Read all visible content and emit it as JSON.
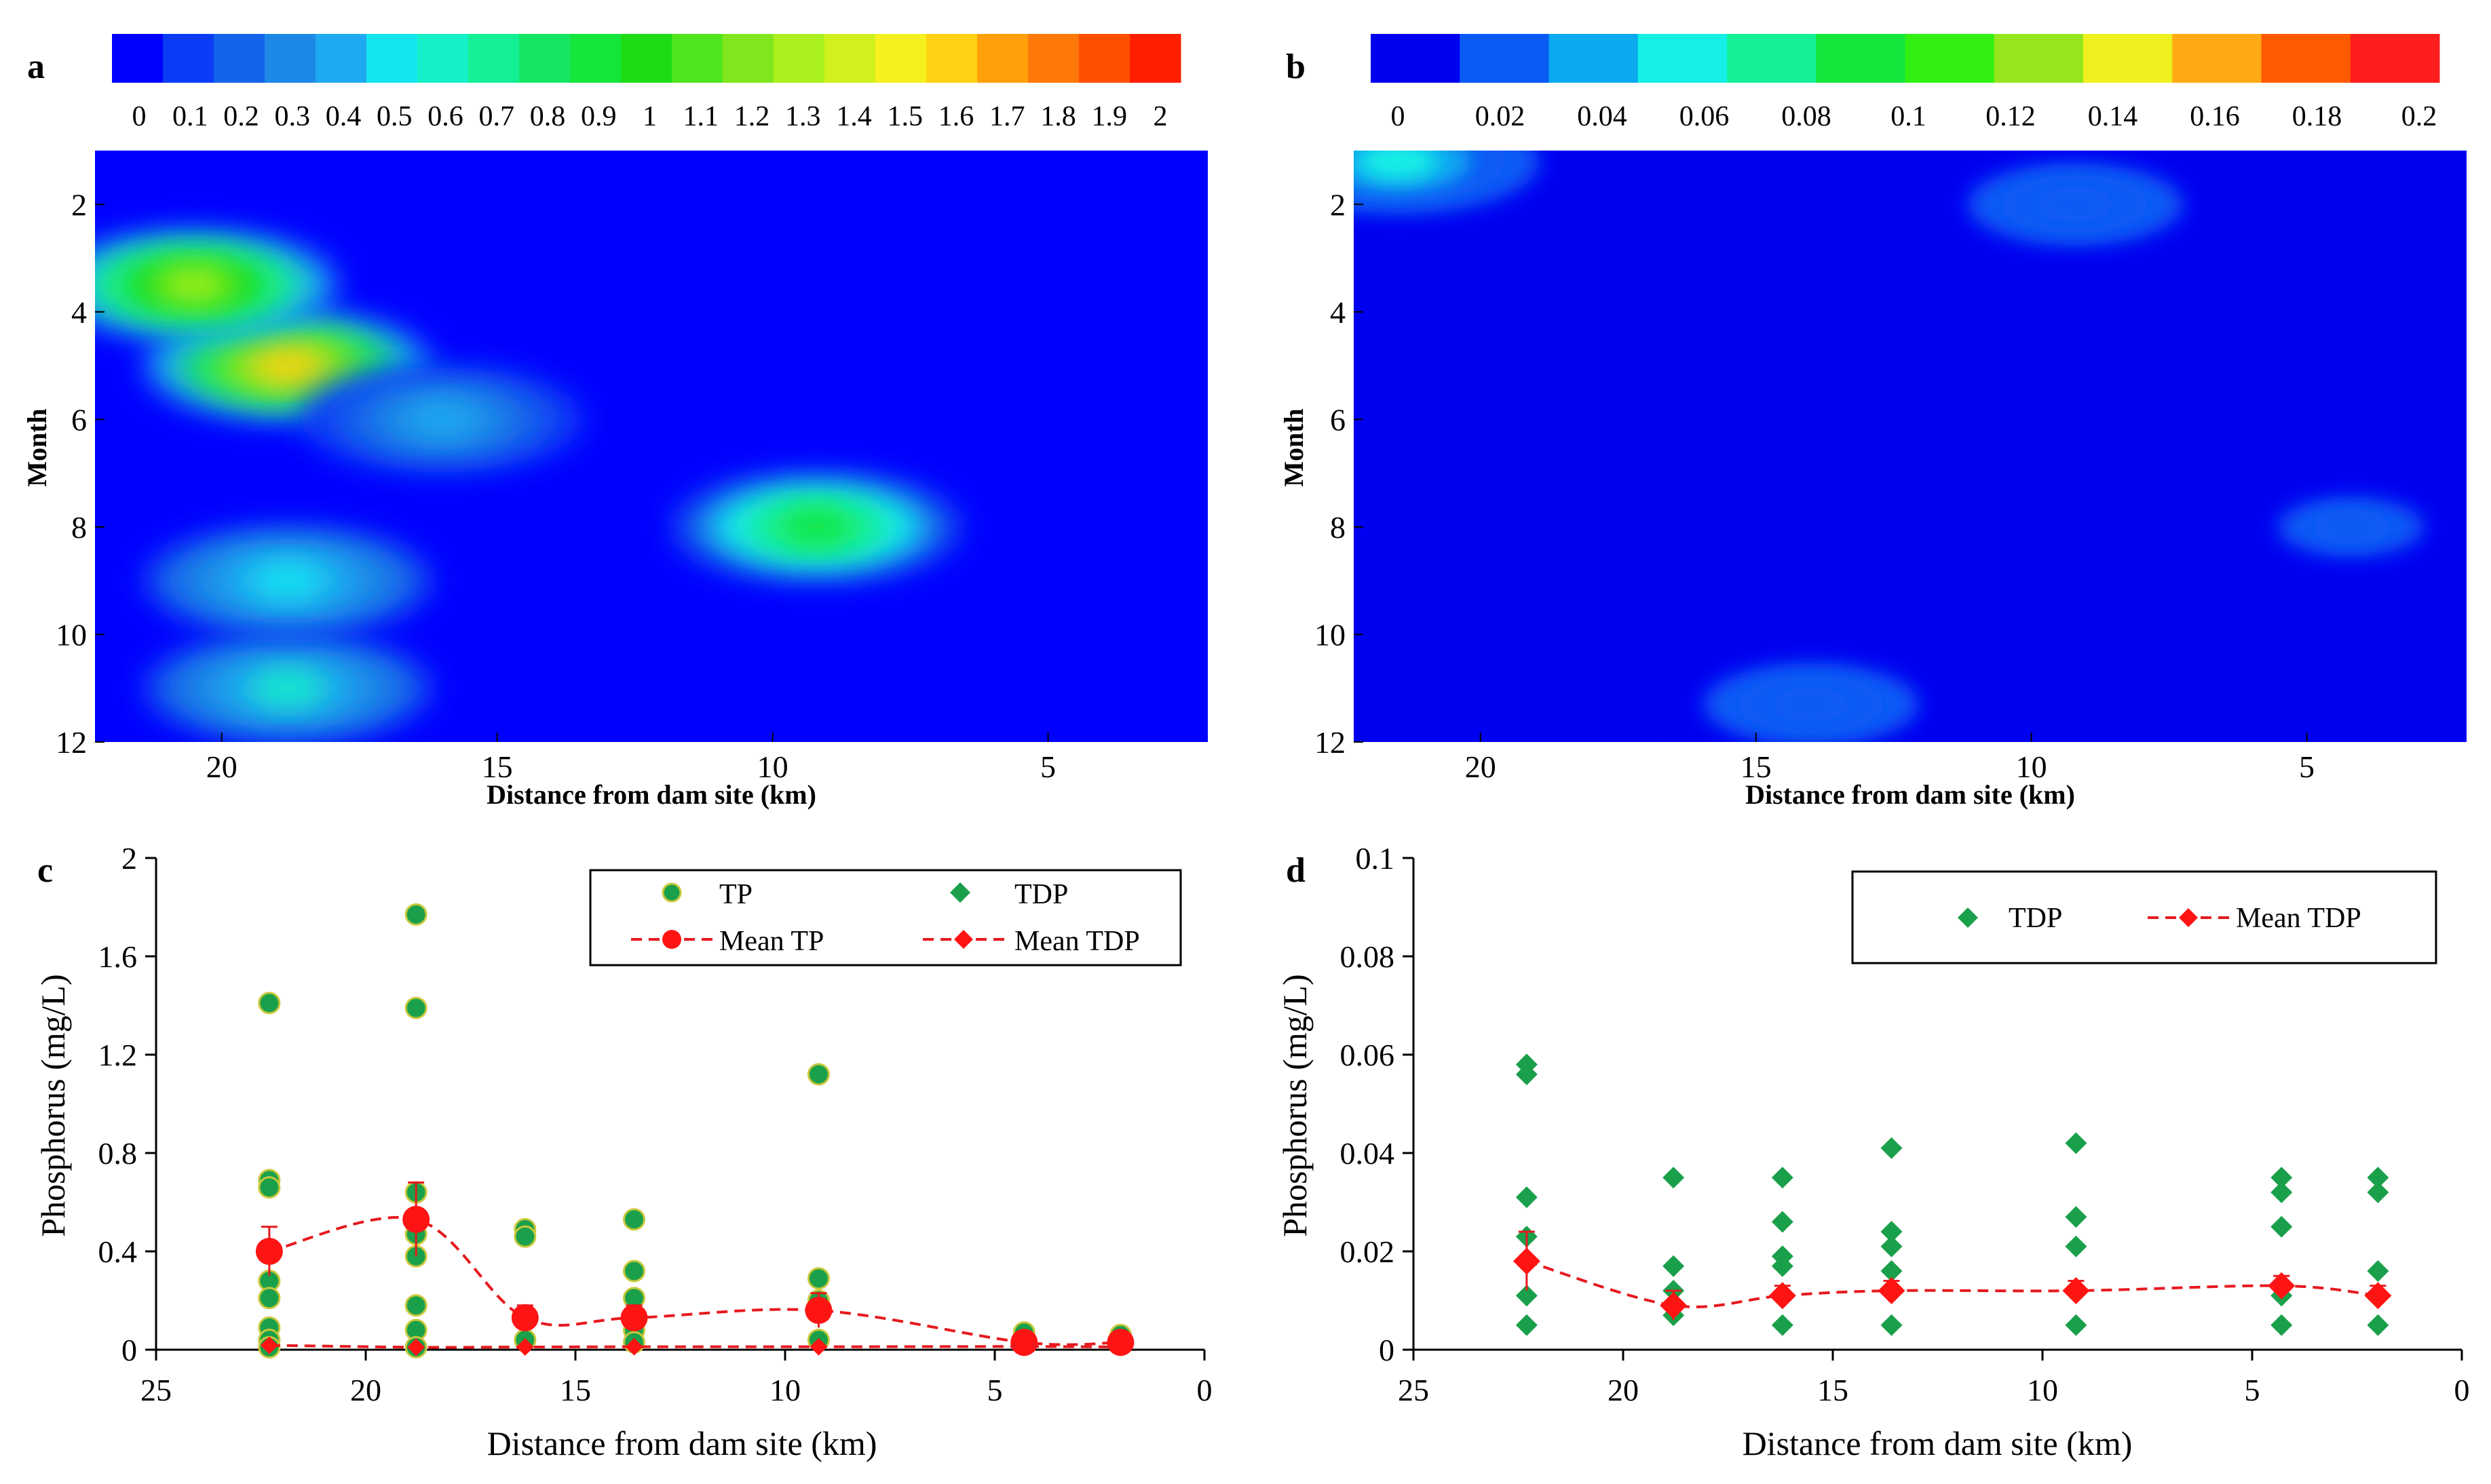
{
  "chart_data": [
    {
      "panel": "a",
      "type": "heatmap",
      "title": "",
      "xlabel": "Distance from dam site (km)",
      "ylabel": "Month",
      "x_ticks": [
        "20",
        "15",
        "10",
        "5"
      ],
      "x_tick_values": [
        20,
        15,
        10,
        5
      ],
      "y_ticks": [
        "2",
        "4",
        "6",
        "8",
        "10",
        "12"
      ],
      "y_tick_values": [
        2,
        4,
        6,
        8,
        10,
        12
      ],
      "xlim": [
        22.3,
        2.1
      ],
      "ylim": [
        1,
        12
      ],
      "colorbar_ticks": [
        "0",
        "0.1",
        "0.2",
        "0.3",
        "0.4",
        "0.5",
        "0.6",
        "0.7",
        "0.8",
        "0.9",
        "1",
        "1.1",
        "1.2",
        "1.3",
        "1.4",
        "1.5",
        "1.6",
        "1.7",
        "1.8",
        "1.9",
        "2"
      ],
      "colorbar_range": [
        0,
        2
      ],
      "colorbar_colors": [
        "#0000ff",
        "#0a3cf5",
        "#1464eb",
        "#1e88e6",
        "#1eaaf0",
        "#14e6f0",
        "#14f0c8",
        "#14f096",
        "#14e664",
        "#14e63c",
        "#1edc14",
        "#50e61e",
        "#82e61e",
        "#aaf01e",
        "#d2f01e",
        "#f5f01e",
        "#ffd214",
        "#ffa00a",
        "#ff780a",
        "#ff5000",
        "#ff1e00"
      ],
      "background_level": 0.08,
      "hotspots": [
        {
          "x": 18.8,
          "month": 5,
          "value": 1.6
        },
        {
          "x": 20.5,
          "month": 3.5,
          "value": 1.3
        },
        {
          "x": 9.2,
          "month": 8,
          "value": 0.9
        },
        {
          "x": 18.8,
          "month": 11,
          "value": 0.6
        },
        {
          "x": 18.8,
          "month": 9,
          "value": 0.55
        },
        {
          "x": 16,
          "month": 6,
          "value": 0.45
        }
      ]
    },
    {
      "panel": "b",
      "type": "heatmap",
      "title": "",
      "xlabel": "Distance from dam site (km)",
      "ylabel": "Month",
      "x_ticks": [
        "20",
        "15",
        "10",
        "5"
      ],
      "x_tick_values": [
        20,
        15,
        10,
        5
      ],
      "y_ticks": [
        "2",
        "4",
        "6",
        "8",
        "10",
        "12"
      ],
      "y_tick_values": [
        2,
        4,
        6,
        8,
        10,
        12
      ],
      "xlim": [
        22.3,
        2.1
      ],
      "ylim": [
        1,
        12
      ],
      "colorbar_ticks": [
        "0",
        "0.02",
        "0.04",
        "0.06",
        "0.08",
        "0.1",
        "0.12",
        "0.14",
        "0.16",
        "0.18",
        "0.2"
      ],
      "colorbar_range": [
        0,
        0.2
      ],
      "colorbar_colors": [
        "#0000f0",
        "#0a5af5",
        "#0aaaf0",
        "#14f0e6",
        "#14f096",
        "#14e63c",
        "#32f014",
        "#96e61e",
        "#f0f01e",
        "#ffaa14",
        "#ff5a00",
        "#ff1e1e"
      ],
      "background_level": 0.012,
      "hotspots": [
        {
          "x": 9.2,
          "month": 2,
          "value": 0.022
        },
        {
          "x": 21.5,
          "month": 1.2,
          "value": 0.05
        },
        {
          "x": 4.2,
          "month": 8,
          "value": 0.02
        },
        {
          "x": 14,
          "month": 11.3,
          "value": 0.03
        }
      ]
    },
    {
      "panel": "c",
      "type": "scatter",
      "title": "",
      "xlabel": "Distance from dam site (km)",
      "ylabel": "Phosphorus (mg/L)",
      "xlim": [
        25,
        0
      ],
      "ylim": [
        0,
        2
      ],
      "x_ticks": [
        "25",
        "20",
        "15",
        "10",
        "5",
        "0"
      ],
      "x_tick_values": [
        25,
        20,
        15,
        10,
        5,
        0
      ],
      "y_ticks": [
        "0",
        "0.4",
        "0.8",
        "1.2",
        "1.6",
        "2"
      ],
      "y_tick_values": [
        0,
        0.4,
        0.8,
        1.2,
        1.6,
        2
      ],
      "legend": [
        "TP",
        "TDP",
        "Mean TP",
        "Mean TDP"
      ],
      "series": [
        {
          "name": "TP",
          "x": [
            22.3,
            22.3,
            22.3,
            22.3,
            22.3,
            22.3,
            22.3,
            22.3,
            18.8,
            18.8,
            18.8,
            18.8,
            18.8,
            18.8,
            18.8,
            18.8,
            16.2,
            16.2,
            16.2,
            16.2,
            13.6,
            13.6,
            13.6,
            13.6,
            13.6,
            9.2,
            9.2,
            9.2,
            9.2,
            4.3,
            4.3,
            2.0,
            2.0
          ],
          "y": [
            1.41,
            0.69,
            0.66,
            0.28,
            0.21,
            0.09,
            0.04,
            0.01,
            1.77,
            1.39,
            0.64,
            0.47,
            0.38,
            0.18,
            0.08,
            0.01,
            0.49,
            0.46,
            0.14,
            0.04,
            0.53,
            0.32,
            0.21,
            0.08,
            0.03,
            1.12,
            0.29,
            0.2,
            0.04,
            0.07,
            0.02,
            0.06,
            0.02
          ]
        },
        {
          "name": "TDP",
          "x": [
            22.3,
            18.8,
            16.2,
            13.6,
            9.2,
            4.3,
            2.0
          ],
          "y": [
            0.02,
            0.01,
            0.01,
            0.01,
            0.01,
            0.01,
            0.01
          ]
        },
        {
          "name": "Mean TP",
          "x": [
            22.3,
            18.8,
            16.2,
            13.6,
            9.2,
            4.3,
            2.0
          ],
          "y": [
            0.4,
            0.53,
            0.13,
            0.13,
            0.16,
            0.03,
            0.03
          ],
          "error": [
            0.1,
            0.15,
            0.05,
            0.05,
            0.07,
            0.01,
            0.01
          ]
        },
        {
          "name": "Mean TDP",
          "x": [
            22.3,
            18.8,
            16.2,
            13.6,
            9.2,
            4.3,
            2.0
          ],
          "y": [
            0.018,
            0.01,
            0.011,
            0.012,
            0.012,
            0.013,
            0.011
          ]
        }
      ]
    },
    {
      "panel": "d",
      "type": "scatter",
      "title": "",
      "xlabel": "Distance from dam site (km)",
      "ylabel": "Phosphorus (mg/L)",
      "xlim": [
        25,
        0
      ],
      "ylim": [
        0,
        0.1
      ],
      "x_ticks": [
        "25",
        "20",
        "15",
        "10",
        "5",
        "0"
      ],
      "x_tick_values": [
        25,
        20,
        15,
        10,
        5,
        0
      ],
      "y_ticks": [
        "0",
        "0.02",
        "0.04",
        "0.06",
        "0.08",
        "0.1"
      ],
      "y_tick_values": [
        0,
        0.02,
        0.04,
        0.06,
        0.08,
        0.1
      ],
      "legend": [
        "TDP",
        "Mean TDP"
      ],
      "series": [
        {
          "name": "TDP",
          "x": [
            22.3,
            22.3,
            22.3,
            22.3,
            22.3,
            22.3,
            18.8,
            18.8,
            18.8,
            18.8,
            16.2,
            16.2,
            16.2,
            16.2,
            16.2,
            13.6,
            13.6,
            13.6,
            13.6,
            13.6,
            9.2,
            9.2,
            9.2,
            9.2,
            9.2,
            4.3,
            4.3,
            4.3,
            4.3,
            4.3,
            2.0,
            2.0,
            2.0,
            2.0
          ],
          "y": [
            0.058,
            0.056,
            0.031,
            0.023,
            0.011,
            0.005,
            0.035,
            0.017,
            0.012,
            0.007,
            0.035,
            0.026,
            0.019,
            0.017,
            0.005,
            0.041,
            0.024,
            0.021,
            0.016,
            0.005,
            0.042,
            0.027,
            0.021,
            0.012,
            0.005,
            0.035,
            0.032,
            0.025,
            0.011,
            0.005,
            0.035,
            0.032,
            0.016,
            0.005
          ]
        },
        {
          "name": "Mean TDP",
          "x": [
            22.3,
            18.8,
            16.2,
            13.6,
            9.2,
            4.3,
            2.0
          ],
          "y": [
            0.018,
            0.009,
            0.011,
            0.012,
            0.012,
            0.013,
            0.011
          ],
          "error": [
            0.006,
            0.003,
            0.002,
            0.002,
            0.002,
            0.002,
            0.002
          ]
        }
      ]
    }
  ],
  "panel_labels": [
    "a",
    "b",
    "c",
    "d"
  ]
}
